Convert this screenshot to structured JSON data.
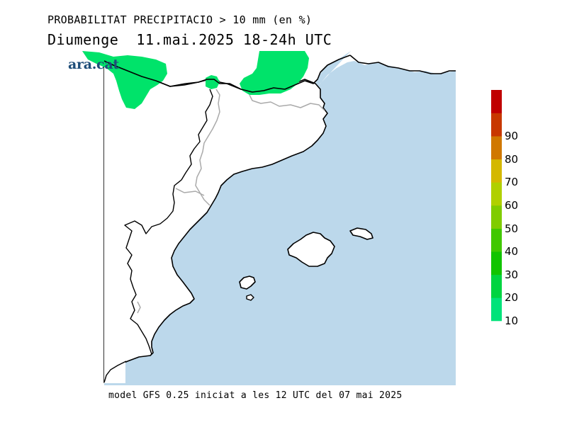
{
  "title": "PROBABILITAT PRECIPITACIO > 10 mm (en %)",
  "subtitle": "Diumenge  11.mai.2025 18-24h UTC",
  "footer": "model GFS 0.25 iniciat a les 12 UTC del 07 mai 2025",
  "brand": "ara.cat",
  "colors": {
    "sea": "#bcd8eb",
    "land": "#ffffff",
    "precip": "#00e36a",
    "coast": "#000000",
    "border": "#aaaaaa"
  },
  "legend": {
    "labels": [
      "10",
      "20",
      "30",
      "40",
      "50",
      "60",
      "70",
      "80",
      "90"
    ],
    "colors": [
      "#00e37a",
      "#00d440",
      "#11c400",
      "#40c800",
      "#80cc00",
      "#b0d000",
      "#d4b800",
      "#d07800",
      "#c83800",
      "#c00000"
    ]
  }
}
